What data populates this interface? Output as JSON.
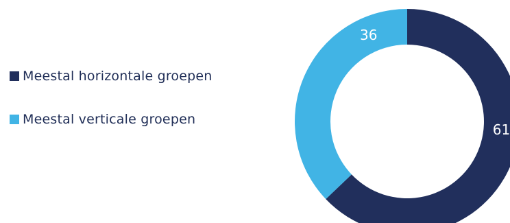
{
  "chart_data": {
    "type": "pie",
    "donut": true,
    "title": "",
    "legend_position": "left",
    "series": [
      {
        "name": "Meestal horizontale groepen",
        "value": 61,
        "color": "#212f5c"
      },
      {
        "name": "Meestal verticale groepen",
        "value": 36,
        "color": "#41b4e5"
      }
    ]
  }
}
